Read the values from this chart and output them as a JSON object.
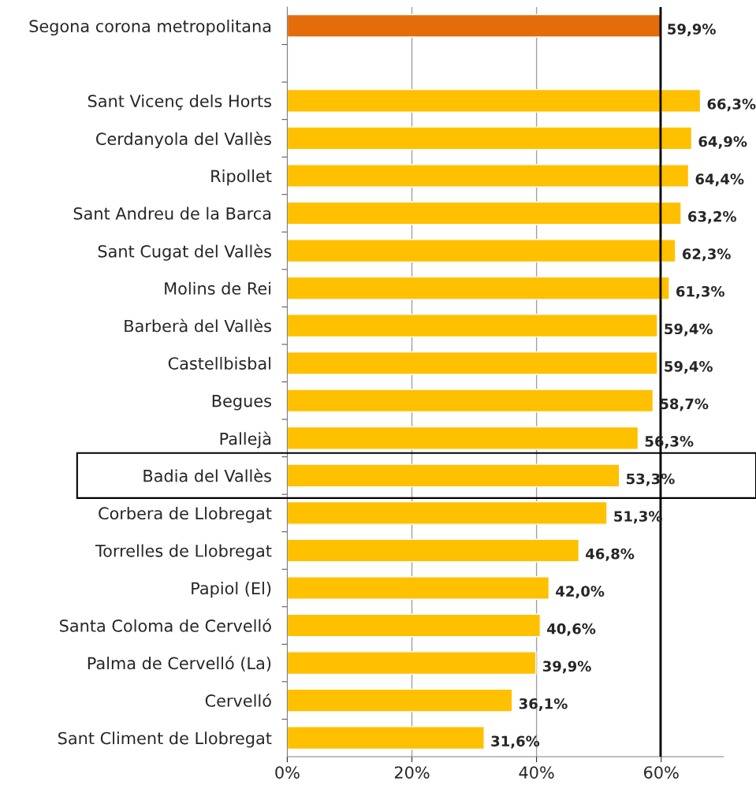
{
  "chart_data": {
    "type": "bar",
    "orientation": "horizontal",
    "categories": [
      "Segona corona metropolitana",
      null,
      "Sant Vicenç dels Horts",
      "Cerdanyola del Vallès",
      "Ripollet",
      "Sant Andreu de la Barca",
      "Sant Cugat del Vallès",
      "Molins de Rei",
      "Barberà del Vallès",
      "Castellbisbal",
      "Begues",
      "Pallejà",
      "Badia del Vallès",
      "Corbera de Llobregat",
      "Torrelles de Llobregat",
      "Papiol (El)",
      "Santa Coloma de Cervelló",
      "Palma de Cervelló (La)",
      "Cervelló",
      "Sant Climent de Llobregat"
    ],
    "values": [
      59.9,
      null,
      66.3,
      64.9,
      64.4,
      63.2,
      62.3,
      61.3,
      59.4,
      59.4,
      58.7,
      56.3,
      53.3,
      51.3,
      46.8,
      42.0,
      40.6,
      39.9,
      36.1,
      31.6
    ],
    "value_labels": [
      "59,9%",
      null,
      "66,3%",
      "64,9%",
      "64,4%",
      "63,2%",
      "62,3%",
      "61,3%",
      "59,4%",
      "59,4%",
      "58,7%",
      "56,3%",
      "53,3%",
      "51,3%",
      "46,8%",
      "42,0%",
      "40,6%",
      "39,9%",
      "36,1%",
      "31,6%"
    ],
    "colors": [
      "#e46c0a",
      null,
      "#ffc000",
      "#ffc000",
      "#ffc000",
      "#ffc000",
      "#ffc000",
      "#ffc000",
      "#ffc000",
      "#ffc000",
      "#ffc000",
      "#ffc000",
      "#ffc000",
      "#ffc000",
      "#ffc000",
      "#ffc000",
      "#ffc000",
      "#ffc000",
      "#ffc000",
      "#ffc000"
    ],
    "xlim": [
      0,
      70
    ],
    "xticks": [
      {
        "value": 0,
        "label": "0%"
      },
      {
        "value": 20,
        "label": "20%"
      },
      {
        "value": 40,
        "label": "40%"
      },
      {
        "value": 60,
        "label": "60%"
      }
    ],
    "grid": "x",
    "ref_lines": [
      {
        "axis": "x",
        "value": 59.9,
        "color": "#000000"
      }
    ]
  }
}
